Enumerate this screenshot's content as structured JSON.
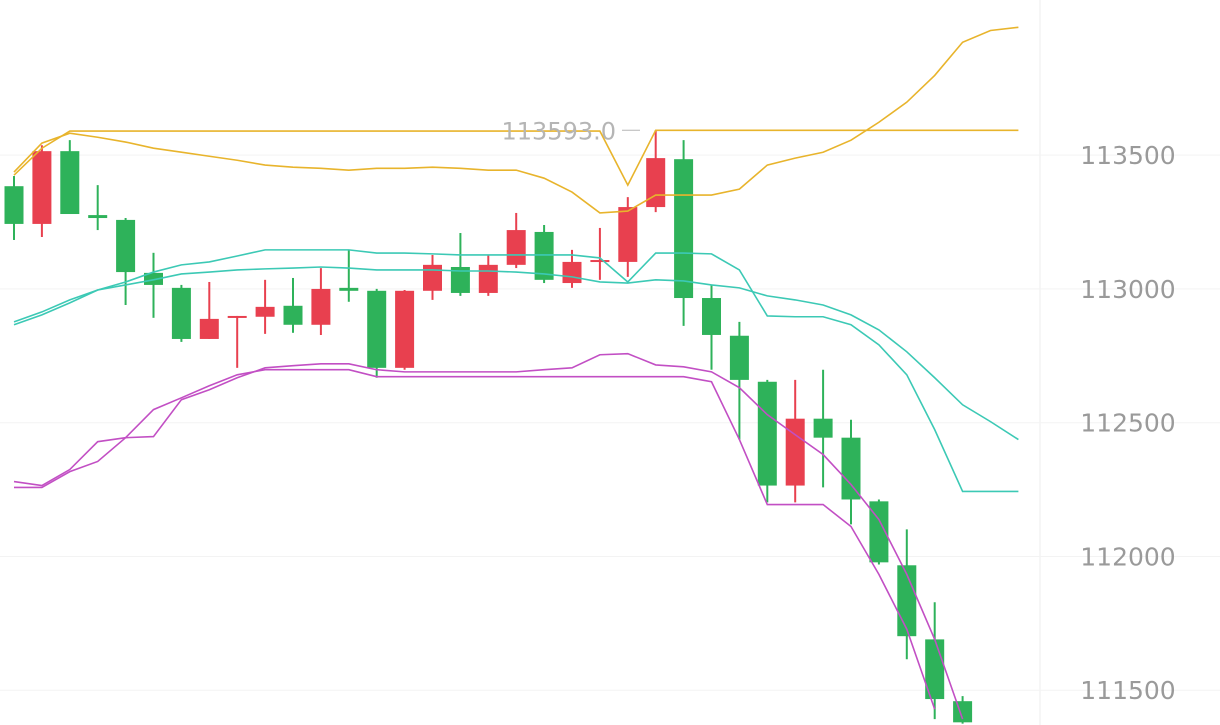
{
  "chart_data": {
    "type": "candlestick",
    "categories": [
      null,
      null,
      null,
      null,
      null,
      null,
      null,
      null,
      null,
      null,
      null,
      null,
      null,
      null,
      null,
      null,
      null,
      null,
      null,
      null,
      null,
      null,
      null,
      null,
      null,
      null,
      null,
      null,
      null,
      null,
      null,
      null,
      null,
      null,
      null,
      null,
      null
    ],
    "up_color": "#e8404f",
    "down_color": "#2eb25a",
    "open": [
      113384,
      113243,
      113515,
      113276,
      113258,
      113060,
      113004,
      112813,
      112892,
      112896,
      112937,
      112866,
      113004,
      112993,
      112705,
      112993,
      113082,
      112985,
      113090,
      113213,
      113022,
      113101,
      113101,
      113306,
      113485,
      112966,
      112825,
      112653,
      112265,
      112515,
      112444,
      112206,
      111967,
      111690,
      111459,
      null,
      null
    ],
    "high": [
      113422,
      113537,
      113556,
      113388,
      113265,
      113135,
      113015,
      113026,
      112899,
      113034,
      113041,
      113078,
      113146,
      113000,
      112996,
      113127,
      113209,
      113127,
      113284,
      113239,
      113146,
      113228,
      113343,
      113593,
      113556,
      113015,
      112877,
      112660,
      112660,
      112698,
      112511,
      112213,
      112101,
      111829,
      111478,
      null,
      null
    ],
    "low": [
      113183,
      113194,
      113280,
      113220,
      112940,
      112892,
      112802,
      112813,
      112705,
      112832,
      112836,
      112828,
      112952,
      112668,
      112698,
      112959,
      112974,
      112974,
      113078,
      113022,
      113004,
      113034,
      113045,
      113287,
      112862,
      112698,
      112437,
      112202,
      112202,
      112258,
      112120,
      111970,
      111616,
      111392,
      111375,
      null,
      null
    ],
    "close": [
      113243,
      113515,
      113280,
      113265,
      113063,
      113015,
      112813,
      112888,
      112899,
      112933,
      112866,
      113000,
      112993,
      112705,
      112993,
      113090,
      112985,
      113090,
      113220,
      113034,
      113101,
      113108,
      113306,
      113489,
      112966,
      112828,
      112660,
      112265,
      112515,
      112444,
      112213,
      111978,
      111702,
      111467,
      111380,
      null,
      null
    ],
    "series": [
      {
        "color": "#e8b42c",
        "values": [
          113425,
          113526,
          113590,
          113590,
          113590,
          113590,
          113590,
          113590,
          113590,
          113590,
          113590,
          113590,
          113590,
          113590,
          113590,
          113590,
          113590,
          113590,
          113590,
          113590,
          113590,
          113590,
          113388,
          113593,
          113593,
          113593,
          113593,
          113593,
          113593,
          113593,
          113593,
          113593,
          113593,
          113593,
          113593,
          113593,
          113593
        ]
      },
      {
        "color": "#e8b42c",
        "values": [
          113437,
          113545,
          113582,
          113567,
          113549,
          113526,
          113511,
          113496,
          113481,
          113463,
          113455,
          113451,
          113444,
          113451,
          113451,
          113455,
          113451,
          113444,
          113444,
          113414,
          113362,
          113284,
          113291,
          113351,
          113351,
          113351,
          113373,
          113463,
          113489,
          113511,
          113556,
          113623,
          113698,
          113798,
          113922,
          113966,
          113978
        ]
      },
      {
        "color": "#3cc9b5",
        "values": [
          112877,
          112914,
          112959,
          112996,
          113026,
          113063,
          113090,
          113101,
          113123,
          113146,
          113146,
          113146,
          113146,
          113134,
          113134,
          113131,
          113127,
          113127,
          113127,
          113127,
          113127,
          113116,
          113026,
          113134,
          113134,
          113131,
          113071,
          112899,
          112896,
          112896,
          112866,
          112791,
          112679,
          112474,
          112243,
          112243,
          112243
        ]
      },
      {
        "color": "#3cc9b5",
        "values": [
          112866,
          112903,
          112948,
          112996,
          113015,
          113034,
          113056,
          113063,
          113071,
          113075,
          113078,
          113082,
          113078,
          113071,
          113071,
          113071,
          113067,
          113067,
          113063,
          113056,
          113045,
          113026,
          113022,
          113034,
          113030,
          113015,
          113004,
          112974,
          112959,
          112940,
          112903,
          112847,
          112765,
          112668,
          112567,
          112504,
          112437
        ]
      },
      {
        "color": "#c24fc4",
        "values": [
          112280,
          112265,
          112325,
          112429,
          112444,
          112448,
          112586,
          112623,
          112668,
          112705,
          112713,
          112720,
          112720,
          112698,
          112690,
          112690,
          112690,
          112690,
          112690,
          112698,
          112705,
          112754,
          112758,
          112716,
          112709,
          112690,
          112631,
          112530,
          112455,
          112381,
          112269,
          112138,
          111933,
          111690,
          111392,
          null,
          null
        ]
      },
      {
        "color": "#c24fc4",
        "values": [
          112258,
          112258,
          112317,
          112355,
          112444,
          112549,
          112593,
          112638,
          112679,
          112698,
          112698,
          112698,
          112698,
          112672,
          112672,
          112672,
          112672,
          112672,
          112672,
          112672,
          112672,
          112672,
          112672,
          112672,
          112672,
          112653,
          112437,
          112194,
          112194,
          112194,
          112112,
          111933,
          111728,
          111429,
          null,
          null,
          null
        ]
      }
    ],
    "price_marker": {
      "value": 113593,
      "label": "113593.0"
    },
    "ylim": [
      111370,
      114080
    ],
    "yticks": [
      111500,
      112000,
      112500,
      113000,
      113500
    ],
    "grid": true
  }
}
